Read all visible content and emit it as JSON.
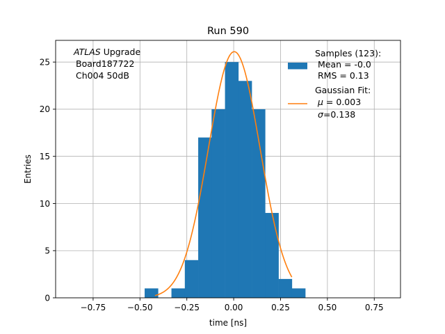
{
  "chart_data": {
    "type": "bar",
    "title": "Run 590",
    "xlabel": "time [ns]",
    "ylabel": "Entries",
    "xlim": [
      -0.95,
      0.89
    ],
    "ylim": [
      0,
      27.3
    ],
    "grid": true,
    "x_ticks": [
      -0.75,
      -0.5,
      -0.25,
      0.0,
      0.25,
      0.5,
      0.75
    ],
    "x_tick_labels": [
      "−0.75",
      "−0.50",
      "−0.25",
      "0.00",
      "0.25",
      "0.50",
      "0.75"
    ],
    "y_ticks": [
      0,
      5,
      10,
      15,
      20,
      25
    ],
    "y_tick_labels": [
      "0",
      "5",
      "10",
      "15",
      "20",
      "25"
    ],
    "annotation": {
      "experiment": "ATLAS",
      "suffix": " Upgrade",
      "line2": "Board187722",
      "line3": "Ch004 50dB"
    },
    "histogram": {
      "bin_width": 0.0714,
      "bins": [
        {
          "left": -0.475,
          "count": 1
        },
        {
          "left": -0.3321,
          "count": 1
        },
        {
          "left": -0.2607,
          "count": 4
        },
        {
          "left": -0.1893,
          "count": 17
        },
        {
          "left": -0.1179,
          "count": 20
        },
        {
          "left": -0.0464,
          "count": 25
        },
        {
          "left": 0.025,
          "count": 23
        },
        {
          "left": 0.0964,
          "count": 20
        },
        {
          "left": 0.1679,
          "count": 9
        },
        {
          "left": 0.2393,
          "count": 2
        },
        {
          "left": 0.3107,
          "count": 1
        }
      ],
      "color": "#1f77b4"
    },
    "fit": {
      "amplitude": 26.1,
      "mu": 0.003,
      "sigma": 0.138,
      "x_range": [
        -0.42,
        0.31
      ],
      "color": "#ff7f0e"
    },
    "legend": {
      "position": "top-right",
      "samples_title": "Samples (123):",
      "samples_mean": "Mean = -0.0",
      "samples_rms": "RMS = 0.13",
      "fit_title": "Gaussian Fit:",
      "fit_mu_symbol": "μ",
      "fit_mu_value": " = 0.003",
      "fit_sigma_symbol": "σ",
      "fit_sigma_value": "=0.138"
    }
  }
}
